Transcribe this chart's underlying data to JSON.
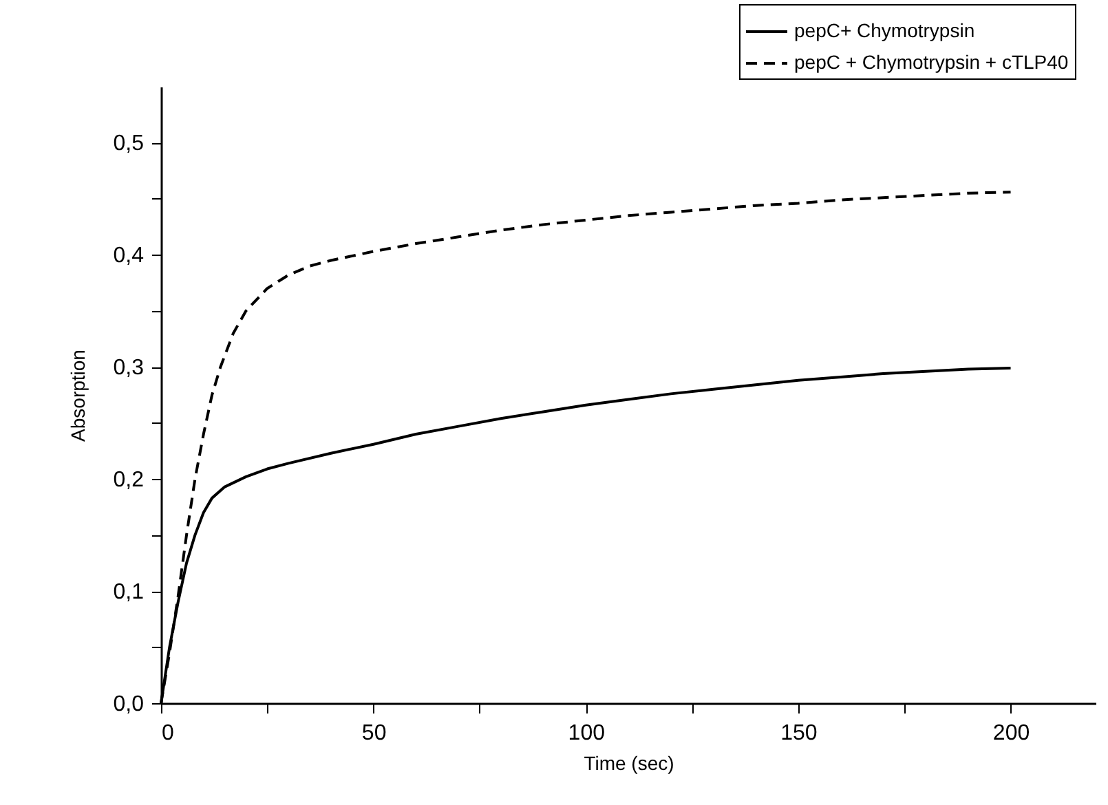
{
  "chart_data": {
    "type": "line",
    "xlabel": "Time (sec)",
    "ylabel": "Absorption",
    "legend": "top right",
    "xlim": [
      0,
      220
    ],
    "xticks": [
      0,
      {
        "value": 25,
        "label": null
      },
      50,
      {
        "value": 75,
        "label": null
      },
      100,
      {
        "value": 125,
        "label": null
      },
      150,
      {
        "value": 175,
        "label": null
      },
      200
    ],
    "ylim": [
      0,
      0.55
    ],
    "yticks": [
      {
        "value": 0,
        "label": "0,0"
      },
      {
        "value": 0.05,
        "label": null
      },
      {
        "value": 0.1,
        "label": "0,1"
      },
      {
        "value": 0.15,
        "label": null
      },
      {
        "value": 0.2,
        "label": "0,2"
      },
      {
        "value": 0.25,
        "label": null
      },
      {
        "value": 0.3,
        "label": "0,3"
      },
      {
        "value": 0.35,
        "label": null
      },
      {
        "value": 0.4,
        "label": "0,4"
      },
      {
        "value": 0.45,
        "label": null
      },
      {
        "value": 0.5,
        "label": "0,5"
      }
    ],
    "x": [
      0,
      2,
      4,
      6,
      8,
      10,
      12,
      15,
      20,
      25,
      30,
      40,
      50,
      60,
      70,
      80,
      90,
      100,
      110,
      120,
      130,
      140,
      150,
      160,
      170,
      180,
      190,
      200
    ],
    "series": [
      {
        "name": "pepC+ Chymotrypsin",
        "color": "#000000",
        "line_style": "solid",
        "values": [
          0,
          0.05,
          0.09,
          0.125,
          0.15,
          0.17,
          0.183,
          0.193,
          0.202,
          0.209,
          0.214,
          0.223,
          0.231,
          0.24,
          0.247,
          0.254,
          0.26,
          0.266,
          0.271,
          0.276,
          0.28,
          0.284,
          0.288,
          0.291,
          0.294,
          0.296,
          0.298,
          0.299
        ]
      },
      {
        "name": "pepC + Chymotrypsin + cTLP40",
        "color": "#000000",
        "line_style": "dashed",
        "x": [
          0,
          2,
          4,
          6,
          8,
          10,
          12,
          14,
          17,
          20,
          25,
          30,
          35,
          40,
          50,
          60,
          70,
          80,
          90,
          100,
          110,
          120,
          130,
          140,
          150,
          160,
          170,
          180,
          190,
          200
        ],
        "values": [
          0,
          0.045,
          0.095,
          0.15,
          0.2,
          0.24,
          0.275,
          0.3,
          0.33,
          0.35,
          0.37,
          0.382,
          0.39,
          0.395,
          0.403,
          0.41,
          0.416,
          0.422,
          0.427,
          0.431,
          0.435,
          0.438,
          0.441,
          0.444,
          0.446,
          0.449,
          0.451,
          0.453,
          0.455,
          0.456
        ]
      }
    ]
  }
}
